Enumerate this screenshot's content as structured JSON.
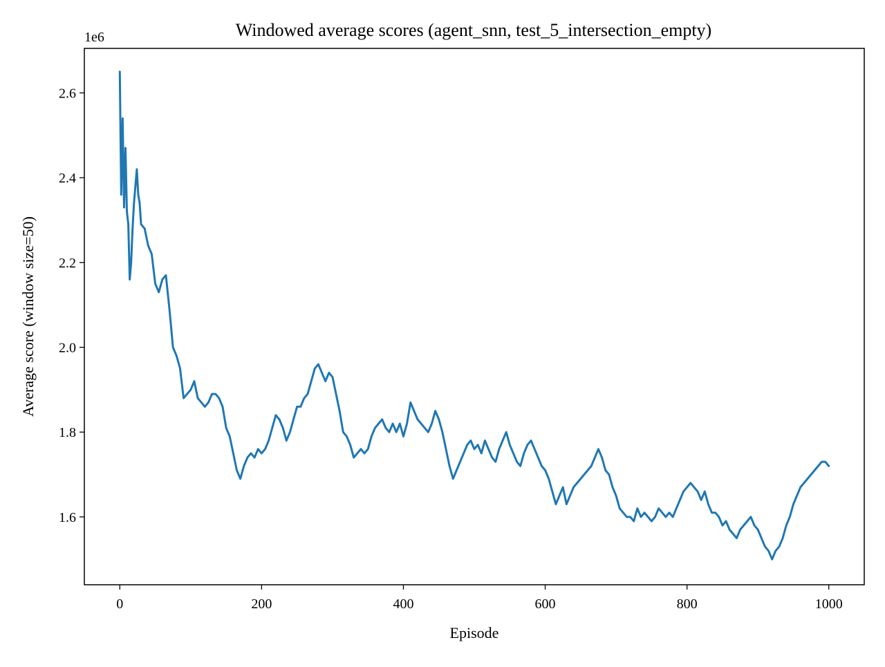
{
  "chart_data": {
    "type": "line",
    "title": "Windowed average scores (agent_snn, test_5_intersection_empty)",
    "xlabel": "Episode",
    "ylabel": "Average score (window size=50)",
    "y_offset_label": "1e6",
    "y_scale": 1000000,
    "xlim": [
      -50,
      1050
    ],
    "ylim": [
      1.44,
      2.705
    ],
    "xticks": [
      0,
      200,
      400,
      600,
      800,
      1000
    ],
    "xtick_labels": [
      "0",
      "200",
      "400",
      "600",
      "800",
      "1000"
    ],
    "yticks": [
      1.6,
      1.8,
      2.0,
      2.2,
      2.4,
      2.6
    ],
    "ytick_labels": [
      "1.6",
      "1.8",
      "2.0",
      "2.2",
      "2.4",
      "2.6"
    ],
    "grid": false,
    "legend": "none",
    "series": [
      {
        "name": "windowed average",
        "color": "#1f77b4",
        "x": [
          0,
          2,
          4,
          6,
          8,
          10,
          12,
          14,
          16,
          18,
          20,
          22,
          24,
          26,
          28,
          30,
          35,
          40,
          45,
          50,
          55,
          60,
          65,
          70,
          75,
          80,
          85,
          90,
          95,
          100,
          105,
          110,
          115,
          120,
          125,
          130,
          135,
          140,
          145,
          150,
          155,
          160,
          165,
          170,
          175,
          180,
          185,
          190,
          195,
          200,
          205,
          210,
          215,
          220,
          225,
          230,
          235,
          240,
          245,
          250,
          255,
          260,
          265,
          270,
          275,
          280,
          285,
          290,
          295,
          300,
          305,
          310,
          315,
          320,
          325,
          330,
          335,
          340,
          345,
          350,
          355,
          360,
          365,
          370,
          375,
          380,
          385,
          390,
          395,
          400,
          405,
          410,
          415,
          420,
          425,
          430,
          435,
          440,
          445,
          450,
          455,
          460,
          465,
          470,
          475,
          480,
          485,
          490,
          495,
          500,
          505,
          510,
          515,
          520,
          525,
          530,
          535,
          540,
          545,
          550,
          555,
          560,
          565,
          570,
          575,
          580,
          585,
          590,
          595,
          600,
          605,
          610,
          615,
          620,
          625,
          630,
          635,
          640,
          645,
          650,
          655,
          660,
          665,
          670,
          675,
          680,
          685,
          690,
          695,
          700,
          705,
          710,
          715,
          720,
          725,
          730,
          735,
          740,
          745,
          750,
          755,
          760,
          765,
          770,
          775,
          780,
          785,
          790,
          795,
          800,
          805,
          810,
          815,
          820,
          825,
          830,
          835,
          840,
          845,
          850,
          855,
          860,
          865,
          870,
          875,
          880,
          885,
          890,
          895,
          900,
          905,
          910,
          915,
          920,
          925,
          930,
          935,
          940,
          945,
          950,
          955,
          960,
          965,
          970,
          975,
          980,
          985,
          990,
          995,
          1000
        ],
        "y": [
          2.65,
          2.36,
          2.54,
          2.33,
          2.47,
          2.32,
          2.29,
          2.16,
          2.2,
          2.28,
          2.34,
          2.38,
          2.42,
          2.36,
          2.34,
          2.29,
          2.28,
          2.24,
          2.22,
          2.15,
          2.13,
          2.16,
          2.17,
          2.09,
          2.0,
          1.98,
          1.95,
          1.88,
          1.89,
          1.9,
          1.92,
          1.88,
          1.87,
          1.86,
          1.87,
          1.89,
          1.89,
          1.88,
          1.86,
          1.81,
          1.79,
          1.75,
          1.71,
          1.69,
          1.72,
          1.74,
          1.75,
          1.74,
          1.76,
          1.75,
          1.76,
          1.78,
          1.81,
          1.84,
          1.83,
          1.81,
          1.78,
          1.8,
          1.83,
          1.86,
          1.86,
          1.88,
          1.89,
          1.92,
          1.95,
          1.96,
          1.94,
          1.92,
          1.94,
          1.93,
          1.89,
          1.85,
          1.8,
          1.79,
          1.77,
          1.74,
          1.75,
          1.76,
          1.75,
          1.76,
          1.79,
          1.81,
          1.82,
          1.83,
          1.81,
          1.8,
          1.82,
          1.8,
          1.82,
          1.79,
          1.82,
          1.87,
          1.85,
          1.83,
          1.82,
          1.81,
          1.8,
          1.82,
          1.85,
          1.83,
          1.8,
          1.76,
          1.72,
          1.69,
          1.71,
          1.73,
          1.75,
          1.77,
          1.78,
          1.76,
          1.77,
          1.75,
          1.78,
          1.76,
          1.74,
          1.73,
          1.76,
          1.78,
          1.8,
          1.77,
          1.75,
          1.73,
          1.72,
          1.75,
          1.77,
          1.78,
          1.76,
          1.74,
          1.72,
          1.71,
          1.69,
          1.66,
          1.63,
          1.65,
          1.67,
          1.63,
          1.65,
          1.67,
          1.68,
          1.69,
          1.7,
          1.71,
          1.72,
          1.74,
          1.76,
          1.74,
          1.71,
          1.7,
          1.67,
          1.65,
          1.62,
          1.61,
          1.6,
          1.6,
          1.59,
          1.62,
          1.6,
          1.61,
          1.6,
          1.59,
          1.6,
          1.62,
          1.61,
          1.6,
          1.61,
          1.6,
          1.62,
          1.64,
          1.66,
          1.67,
          1.68,
          1.67,
          1.66,
          1.64,
          1.66,
          1.63,
          1.61,
          1.61,
          1.6,
          1.58,
          1.59,
          1.57,
          1.56,
          1.55,
          1.57,
          1.58,
          1.59,
          1.6,
          1.58,
          1.57,
          1.55,
          1.53,
          1.52,
          1.5,
          1.52,
          1.53,
          1.55,
          1.58,
          1.6,
          1.63,
          1.65,
          1.67,
          1.68,
          1.69,
          1.7,
          1.71,
          1.72,
          1.73,
          1.73,
          1.72
        ]
      }
    ]
  }
}
